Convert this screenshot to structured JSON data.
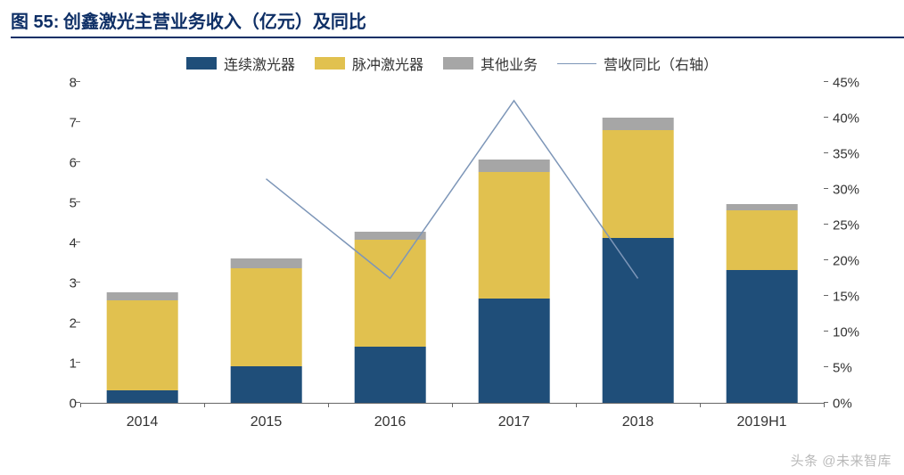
{
  "title": {
    "prefix": "图 55:",
    "text": "创鑫激光主营业务收入（亿元）及同比",
    "color": "#0e2f66",
    "fontsize": 20
  },
  "legend": {
    "items": [
      {
        "label": "连续激光器",
        "type": "swatch",
        "color": "#1f4e79"
      },
      {
        "label": "脉冲激光器",
        "type": "swatch",
        "color": "#e1c14f"
      },
      {
        "label": "其他业务",
        "type": "swatch",
        "color": "#a6a6a6"
      },
      {
        "label": "营收同比（右轴）",
        "type": "line",
        "color": "#7d96b8"
      }
    ],
    "fontsize": 16
  },
  "chart": {
    "type": "stacked-bar-with-line",
    "background_color": "#ffffff",
    "bar_width_ratio": 0.58,
    "categories": [
      "2014",
      "2015",
      "2016",
      "2017",
      "2018",
      "2019H1"
    ],
    "series": [
      {
        "name": "连续激光器",
        "color": "#1f4e79",
        "values": [
          0.3,
          0.9,
          1.4,
          2.6,
          4.1,
          3.3
        ]
      },
      {
        "name": "脉冲激光器",
        "color": "#e1c14f",
        "values": [
          2.25,
          2.45,
          2.65,
          3.15,
          2.7,
          1.5
        ]
      },
      {
        "name": "其他业务",
        "color": "#a6a6a6",
        "values": [
          0.2,
          0.25,
          0.2,
          0.3,
          0.3,
          0.15
        ]
      }
    ],
    "line_series": {
      "name": "营收同比（右轴）",
      "color": "#7d96b8",
      "width": 1.5,
      "values": [
        null,
        31.5,
        17.5,
        42.5,
        17.5,
        null
      ]
    },
    "y_left": {
      "min": 0,
      "max": 8,
      "step": 1,
      "labels": [
        "0",
        "1",
        "2",
        "3",
        "4",
        "5",
        "6",
        "7",
        "8"
      ]
    },
    "y_right": {
      "min": 0,
      "max": 45,
      "step": 5,
      "labels": [
        "0%",
        "5%",
        "10%",
        "15%",
        "20%",
        "25%",
        "30%",
        "35%",
        "40%",
        "45%"
      ]
    },
    "axis_color": "#666666",
    "label_fontsize": 15
  },
  "watermark": "头条 @未来智库"
}
